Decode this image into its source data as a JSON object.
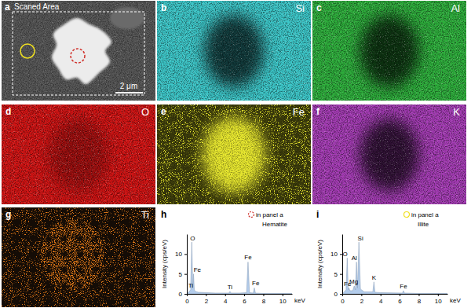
{
  "panels": [
    {
      "label": "a",
      "title": "Scaned Area",
      "scale_bar": "2 μm",
      "circles": [
        {
          "color": "#d0302a",
          "line_style": "dashed"
        },
        {
          "color": "#f0e020",
          "line_style": "solid"
        }
      ]
    },
    {
      "label": "b",
      "element": "Si",
      "color": "#3cc6c8"
    },
    {
      "label": "c",
      "element": "Al",
      "color": "#2eae3c"
    },
    {
      "label": "d",
      "element": "O",
      "color": "#d01414"
    },
    {
      "label": "e",
      "element": "Fe",
      "color": "#f0f030"
    },
    {
      "label": "f",
      "element": "K",
      "color": "#a43cb4"
    },
    {
      "label": "g",
      "element": "Ti",
      "color": "#e07818"
    }
  ],
  "chart_data": [
    {
      "type": "area",
      "title": "h",
      "subtitle": "Hematite",
      "x_label": "keV",
      "y_label": "Intensity (cps/eV)",
      "x": [
        0,
        0.2,
        0.4,
        0.52,
        0.62,
        0.7,
        0.78,
        0.9,
        1.2,
        2,
        3,
        4.4,
        4.51,
        4.62,
        5.5,
        6.25,
        6.4,
        6.55,
        6.95,
        7.06,
        7.17,
        8,
        10,
        11
      ],
      "series": [
        {
          "name": "in panel a",
          "color": "#b3cceb",
          "values": [
            0,
            0.5,
            1,
            13,
            1.5,
            5,
            1,
            0.6,
            0.4,
            0.3,
            0.2,
            0.2,
            0.6,
            0.2,
            0.2,
            0.3,
            8,
            0.3,
            0.2,
            1.5,
            0.2,
            0.1,
            0.1,
            0.1
          ]
        }
      ],
      "xlim": [
        0,
        11
      ],
      "xticks": [
        0,
        2,
        4,
        6,
        8,
        10
      ],
      "ylim": [
        0,
        15
      ],
      "yticks": [
        0,
        5,
        10
      ],
      "legend": "top-right",
      "annotations": [
        {
          "text": "O",
          "x": 0.6,
          "y": 13.3
        },
        {
          "text": "Fe",
          "x": 1.1,
          "y": 5.3
        },
        {
          "text": "Ti",
          "x": 0.4,
          "y": 1.3
        },
        {
          "text": "Ti",
          "x": 4.51,
          "y": 1.0
        },
        {
          "text": "Fe",
          "x": 6.4,
          "y": 8.4
        },
        {
          "text": "Fe",
          "x": 7.2,
          "y": 1.9
        }
      ]
    },
    {
      "type": "area",
      "title": "i",
      "subtitle": "Illite",
      "x_label": "keV",
      "y_label": "Intensity (cps/eV)",
      "x": [
        0,
        0.2,
        0.4,
        0.52,
        0.62,
        0.7,
        0.8,
        1.1,
        1.25,
        1.38,
        1.49,
        1.6,
        1.74,
        1.9,
        2.3,
        3.2,
        3.31,
        3.42,
        4,
        6.3,
        6.4,
        6.5,
        8,
        11
      ],
      "series": [
        {
          "name": "in panel a",
          "color": "#b3cceb",
          "values": [
            0,
            0.5,
            1,
            9,
            1,
            1.5,
            0.8,
            0.8,
            2,
            1,
            8,
            1.5,
            13,
            1.2,
            0.5,
            0.5,
            3,
            0.4,
            0.3,
            0.2,
            0.8,
            0.2,
            0.1,
            0.1
          ]
        }
      ],
      "xlim": [
        0,
        11
      ],
      "xticks": [
        0,
        2,
        4,
        6,
        8,
        10
      ],
      "ylim": [
        0,
        15
      ],
      "yticks": [
        0,
        5,
        10
      ],
      "legend": "top-right",
      "annotations": [
        {
          "text": "O",
          "x": 0.3,
          "y": 9.3
        },
        {
          "text": "Al",
          "x": 1.25,
          "y": 8.3
        },
        {
          "text": "Si",
          "x": 1.9,
          "y": 13.3
        },
        {
          "text": "Mg",
          "x": 1.2,
          "y": 2.4
        },
        {
          "text": "Fe",
          "x": 0.55,
          "y": 1.8
        },
        {
          "text": "K",
          "x": 3.31,
          "y": 3.4
        },
        {
          "text": "Fe",
          "x": 6.4,
          "y": 1.2
        }
      ]
    }
  ]
}
